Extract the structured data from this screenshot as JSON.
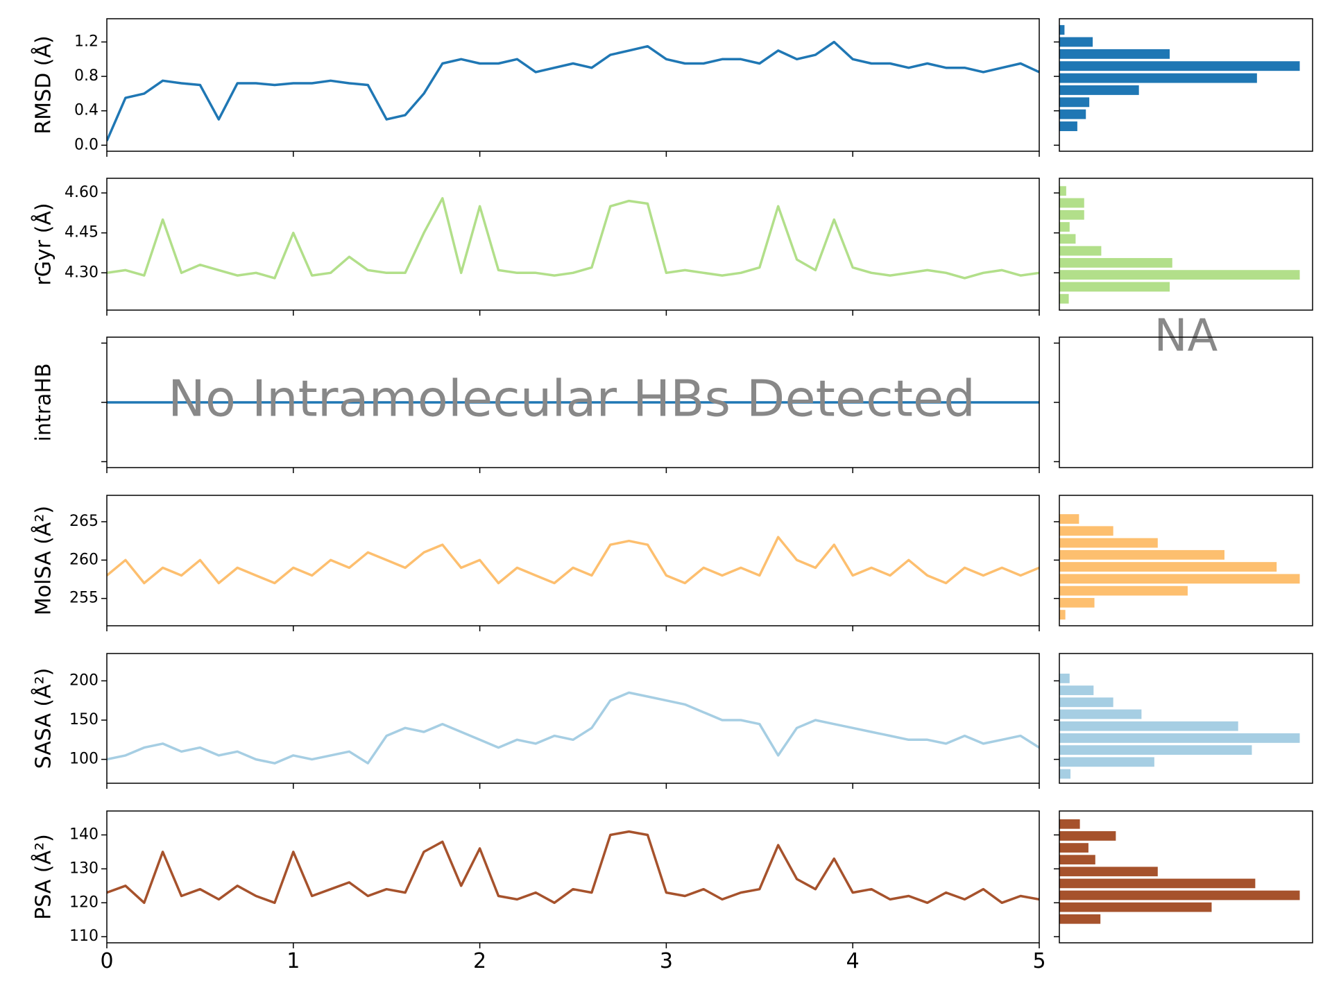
{
  "chart_data": [
    {
      "type": "line",
      "ylabel": "RMSD (Å)",
      "color": "#1f77b4",
      "x": [
        0,
        0.1,
        0.2,
        0.3,
        0.4,
        0.5,
        0.6,
        0.7,
        0.8,
        0.9,
        1,
        1.1,
        1.2,
        1.3,
        1.4,
        1.5,
        1.6,
        1.7,
        1.8,
        1.9,
        2,
        2.1,
        2.2,
        2.3,
        2.4,
        2.5,
        2.6,
        2.7,
        2.8,
        2.9,
        3,
        3.1,
        3.2,
        3.3,
        3.4,
        3.5,
        3.6,
        3.7,
        3.8,
        3.9,
        4,
        4.1,
        4.2,
        4.3,
        4.4,
        4.5,
        4.6,
        4.7,
        4.8,
        4.9,
        5
      ],
      "values": [
        0.05,
        0.55,
        0.6,
        0.75,
        0.72,
        0.7,
        0.3,
        0.72,
        0.72,
        0.7,
        0.72,
        0.72,
        0.75,
        0.72,
        0.7,
        0.3,
        0.35,
        0.6,
        0.95,
        1.0,
        0.95,
        0.95,
        1.0,
        0.85,
        0.9,
        0.95,
        0.9,
        1.05,
        1.1,
        1.15,
        1.0,
        0.95,
        0.95,
        1.0,
        1.0,
        0.95,
        1.1,
        1.0,
        1.05,
        1.2,
        1.0,
        0.95,
        0.95,
        0.9,
        0.95,
        0.9,
        0.9,
        0.85,
        0.9,
        0.95,
        0.85
      ],
      "xlim": [
        0,
        5
      ],
      "xticks": [
        0,
        1,
        2,
        3,
        4,
        5
      ],
      "xtick_labels": false,
      "ylim": [
        -0.07,
        1.47
      ],
      "yticks": [
        {
          "value": 0,
          "label": "0.0"
        },
        0.4,
        0.8,
        1.2
      ],
      "ytick_labels": true
    },
    {
      "type": "histogram",
      "color": "#1f77b4",
      "bins": [
        0.15,
        0.29,
        0.43,
        0.57,
        0.71,
        0.85,
        0.99,
        1.13,
        1.27,
        1.41
      ],
      "counts": [
        21,
        31,
        35,
        93,
        231,
        281,
        129,
        39,
        6
      ],
      "xlim": [
        0,
        296
      ]
    },
    {
      "type": "line",
      "ylabel": "rGyr (Å)",
      "color": "#b2df8a",
      "x": [
        0,
        0.1,
        0.2,
        0.3,
        0.4,
        0.5,
        0.6,
        0.7,
        0.8,
        0.9,
        1,
        1.1,
        1.2,
        1.3,
        1.4,
        1.5,
        1.6,
        1.7,
        1.8,
        1.9,
        2,
        2.1,
        2.2,
        2.3,
        2.4,
        2.5,
        2.6,
        2.7,
        2.8,
        2.9,
        3,
        3.1,
        3.2,
        3.3,
        3.4,
        3.5,
        3.6,
        3.7,
        3.8,
        3.9,
        4,
        4.1,
        4.2,
        4.3,
        4.4,
        4.5,
        4.6,
        4.7,
        4.8,
        4.9,
        5
      ],
      "values": [
        4.3,
        4.31,
        4.29,
        4.5,
        4.3,
        4.33,
        4.31,
        4.29,
        4.3,
        4.28,
        4.45,
        4.29,
        4.3,
        4.36,
        4.31,
        4.3,
        4.3,
        4.45,
        4.58,
        4.3,
        4.55,
        4.31,
        4.3,
        4.3,
        4.29,
        4.3,
        4.32,
        4.55,
        4.57,
        4.56,
        4.3,
        4.31,
        4.3,
        4.29,
        4.3,
        4.32,
        4.55,
        4.35,
        4.31,
        4.5,
        4.32,
        4.3,
        4.29,
        4.3,
        4.31,
        4.3,
        4.28,
        4.3,
        4.31,
        4.29,
        4.3
      ],
      "xlim": [
        0,
        5
      ],
      "xticks": [
        0,
        1,
        2,
        3,
        4,
        5
      ],
      "xtick_labels": false,
      "ylim": [
        4.16,
        4.655
      ],
      "yticks": [
        {
          "value": 4.3,
          "label": "4.30"
        },
        4.45,
        {
          "value": 4.6,
          "label": "4.60"
        }
      ],
      "ytick_labels": true
    },
    {
      "type": "histogram",
      "color": "#b2df8a",
      "bins": [
        4.18,
        4.225,
        4.27,
        4.315,
        4.36,
        4.405,
        4.45,
        4.495,
        4.54,
        4.585,
        4.63
      ],
      "counts": [
        11,
        129,
        281,
        132,
        49,
        19,
        12,
        29,
        29,
        8
      ],
      "xlim": [
        0,
        296
      ]
    },
    {
      "type": "line",
      "ylabel": "intraHB",
      "color": "#1f77b4",
      "annotation": "No Intramolecular HBs Detected",
      "x": [
        0,
        0.1,
        0.2,
        0.3,
        0.4,
        0.5,
        0.6,
        0.7,
        0.8,
        0.9,
        1,
        1.1,
        1.2,
        1.3,
        1.4,
        1.5,
        1.6,
        1.7,
        1.8,
        1.9,
        2,
        2.1,
        2.2,
        2.3,
        2.4,
        2.5,
        2.6,
        2.7,
        2.8,
        2.9,
        3,
        3.1,
        3.2,
        3.3,
        3.4,
        3.5,
        3.6,
        3.7,
        3.8,
        3.9,
        4,
        4.1,
        4.2,
        4.3,
        4.4,
        4.5,
        4.6,
        4.7,
        4.8,
        4.9,
        5
      ],
      "values": [
        0,
        0,
        0,
        0,
        0,
        0,
        0,
        0,
        0,
        0,
        0,
        0,
        0,
        0,
        0,
        0,
        0,
        0,
        0,
        0,
        0,
        0,
        0,
        0,
        0,
        0,
        0,
        0,
        0,
        0,
        0,
        0,
        0,
        0,
        0,
        0,
        0,
        0,
        0,
        0,
        0,
        0,
        0,
        0,
        0,
        0,
        0,
        0,
        0,
        0,
        0
      ],
      "xlim": [
        0,
        5
      ],
      "xticks": [
        0,
        1,
        2,
        3,
        4,
        5
      ],
      "xtick_labels": false,
      "ylim": [
        -0.055,
        0.055
      ],
      "yticks": [
        -0.05,
        0,
        0.05
      ],
      "ytick_labels": false
    },
    {
      "type": "histogram",
      "annotation": "NA",
      "xlim": [
        0,
        296
      ]
    },
    {
      "type": "line",
      "ylabel": "MolSA (Å²)",
      "color": "#fdbf6f",
      "x": [
        0,
        0.1,
        0.2,
        0.3,
        0.4,
        0.5,
        0.6,
        0.7,
        0.8,
        0.9,
        1,
        1.1,
        1.2,
        1.3,
        1.4,
        1.5,
        1.6,
        1.7,
        1.8,
        1.9,
        2,
        2.1,
        2.2,
        2.3,
        2.4,
        2.5,
        2.6,
        2.7,
        2.8,
        2.9,
        3,
        3.1,
        3.2,
        3.3,
        3.4,
        3.5,
        3.6,
        3.7,
        3.8,
        3.9,
        4,
        4.1,
        4.2,
        4.3,
        4.4,
        4.5,
        4.6,
        4.7,
        4.8,
        4.9,
        5
      ],
      "values": [
        258,
        260,
        257,
        259,
        258,
        260,
        257,
        259,
        258,
        257,
        259,
        258,
        260,
        259,
        261,
        260,
        259,
        261,
        262,
        259,
        260,
        257,
        259,
        258,
        257,
        259,
        258,
        262,
        262.5,
        262,
        258,
        257,
        259,
        258,
        259,
        258,
        263,
        260,
        259,
        262,
        258,
        259,
        258,
        260,
        258,
        257,
        259,
        258,
        259,
        258,
        259
      ],
      "xlim": [
        0,
        5
      ],
      "xticks": [
        0,
        1,
        2,
        3,
        4,
        5
      ],
      "xtick_labels": false,
      "ylim": [
        251.44,
        268.44
      ],
      "yticks": [
        255,
        260,
        265
      ],
      "ytick_labels": true
    },
    {
      "type": "histogram",
      "color": "#fdbf6f",
      "bins": [
        252.1,
        253.66,
        255.22,
        256.78,
        258.34,
        259.9,
        261.46,
        263.02,
        264.58,
        266.14
      ],
      "counts": [
        7,
        41,
        150,
        281,
        254,
        193,
        115,
        63,
        23
      ],
      "xlim": [
        0,
        296
      ]
    },
    {
      "type": "line",
      "ylabel": "SASA (Å²)",
      "color": "#a6cee3",
      "x": [
        0,
        0.1,
        0.2,
        0.3,
        0.4,
        0.5,
        0.6,
        0.7,
        0.8,
        0.9,
        1,
        1.1,
        1.2,
        1.3,
        1.4,
        1.5,
        1.6,
        1.7,
        1.8,
        1.9,
        2,
        2.1,
        2.2,
        2.3,
        2.4,
        2.5,
        2.6,
        2.7,
        2.8,
        2.9,
        3,
        3.1,
        3.2,
        3.3,
        3.4,
        3.5,
        3.6,
        3.7,
        3.8,
        3.9,
        4,
        4.1,
        4.2,
        4.3,
        4.4,
        4.5,
        4.6,
        4.7,
        4.8,
        4.9,
        5
      ],
      "values": [
        100,
        105,
        115,
        120,
        110,
        115,
        105,
        110,
        100,
        95,
        105,
        100,
        105,
        110,
        95,
        130,
        140,
        135,
        145,
        135,
        125,
        115,
        125,
        120,
        130,
        125,
        140,
        175,
        185,
        180,
        175,
        170,
        160,
        150,
        150,
        145,
        105,
        140,
        150,
        145,
        140,
        135,
        130,
        125,
        125,
        120,
        130,
        120,
        125,
        130,
        115
      ],
      "xlim": [
        0,
        5
      ],
      "xticks": [
        0,
        1,
        2,
        3,
        4,
        5
      ],
      "xtick_labels": false,
      "ylim": [
        69.6,
        234.8
      ],
      "yticks": [
        100,
        150,
        200
      ],
      "ytick_labels": true
    },
    {
      "type": "histogram",
      "color": "#a6cee3",
      "bins": [
        73.9,
        89.1,
        104.3,
        119.5,
        134.7,
        149.9,
        165.1,
        180.3,
        195.5,
        210.7
      ],
      "counts": [
        13,
        111,
        225,
        281,
        209,
        96,
        63,
        40,
        12
      ],
      "xlim": [
        0,
        296
      ]
    },
    {
      "type": "line",
      "ylabel": "PSA (Å²)",
      "color": "#a6522c",
      "x": [
        0,
        0.1,
        0.2,
        0.3,
        0.4,
        0.5,
        0.6,
        0.7,
        0.8,
        0.9,
        1,
        1.1,
        1.2,
        1.3,
        1.4,
        1.5,
        1.6,
        1.7,
        1.8,
        1.9,
        2,
        2.1,
        2.2,
        2.3,
        2.4,
        2.5,
        2.6,
        2.7,
        2.8,
        2.9,
        3,
        3.1,
        3.2,
        3.3,
        3.4,
        3.5,
        3.6,
        3.7,
        3.8,
        3.9,
        4,
        4.1,
        4.2,
        4.3,
        4.4,
        4.5,
        4.6,
        4.7,
        4.8,
        4.9,
        5
      ],
      "values": [
        123,
        125,
        120,
        135,
        122,
        124,
        121,
        125,
        122,
        120,
        135,
        122,
        124,
        126,
        122,
        124,
        123,
        135,
        138,
        125,
        136,
        122,
        121,
        123,
        120,
        124,
        123,
        140,
        141,
        140,
        123,
        122,
        124,
        121,
        123,
        124,
        137,
        127,
        124,
        133,
        123,
        124,
        121,
        122,
        120,
        123,
        121,
        124,
        120,
        122,
        121
      ],
      "xlim": [
        0,
        5
      ],
      "xticks": [
        0,
        1,
        2,
        3,
        4,
        5
      ],
      "xtick_labels": true,
      "ylim": [
        108.2,
        147.05
      ],
      "yticks": [
        110,
        120,
        130,
        140
      ],
      "ytick_labels": true
    },
    {
      "type": "histogram",
      "color": "#a6522c",
      "bins": [
        113.45,
        116.95,
        120.45,
        123.95,
        127.45,
        130.95,
        134.45,
        137.95,
        141.45,
        144.95
      ],
      "counts": [
        48,
        178,
        281,
        229,
        115,
        42,
        34,
        66,
        24
      ],
      "xlim": [
        0,
        296
      ]
    }
  ]
}
